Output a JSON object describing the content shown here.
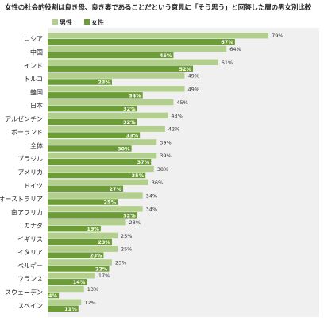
{
  "chart_data": {
    "type": "bar",
    "orientation": "horizontal",
    "title": "女性の社会的役割は良き母、良き妻であることだという意見に「そう思う」と回答した層の男女別比較",
    "categories": [
      "ロシア",
      "中国",
      "インド",
      "トルコ",
      "韓国",
      "日本",
      "アルゼンチン",
      "ポーランド",
      "全体",
      "ブラジル",
      "アメリカ",
      "ドイツ",
      "オーストラリア",
      "南アフリカ",
      "カナダ",
      "イギリス",
      "イタリア",
      "ベルギー",
      "フランス",
      "スウェーデン",
      "スペイン"
    ],
    "series": [
      {
        "name": "男性",
        "color": "#b3cf8d",
        "values": [
          79,
          64,
          61,
          49,
          49,
          45,
          43,
          42,
          39,
          39,
          38,
          36,
          34,
          34,
          28,
          25,
          25,
          23,
          17,
          13,
          12
        ],
        "labels": [
          "79%",
          "64%",
          "61%",
          "49%",
          "49%",
          "45%",
          "43%",
          "42%",
          "39%",
          "39%",
          "38%",
          "36%",
          "34%",
          "34%",
          "28%",
          "25%",
          "25%",
          "23%",
          "17%",
          "13%",
          "12%"
        ]
      },
      {
        "name": "女性",
        "color": "#6c9c36",
        "values": [
          67,
          45,
          52,
          23,
          34,
          32,
          32,
          33,
          30,
          37,
          35,
          27,
          25,
          32,
          19,
          23,
          20,
          22,
          14,
          4,
          11
        ],
        "labels": [
          "67%",
          "45%",
          "52%",
          "23%",
          "34%",
          "32%",
          "32%",
          "33%",
          "30%",
          "37%",
          "35%",
          "27%",
          "25%",
          "32%",
          "19%",
          "23%",
          "20%",
          "22%",
          "14%",
          "4%",
          "11%"
        ]
      }
    ],
    "xlim": [
      0,
      100
    ],
    "grid": false,
    "legend_position": "top-left",
    "plot_background": "#f0f0f0"
  }
}
